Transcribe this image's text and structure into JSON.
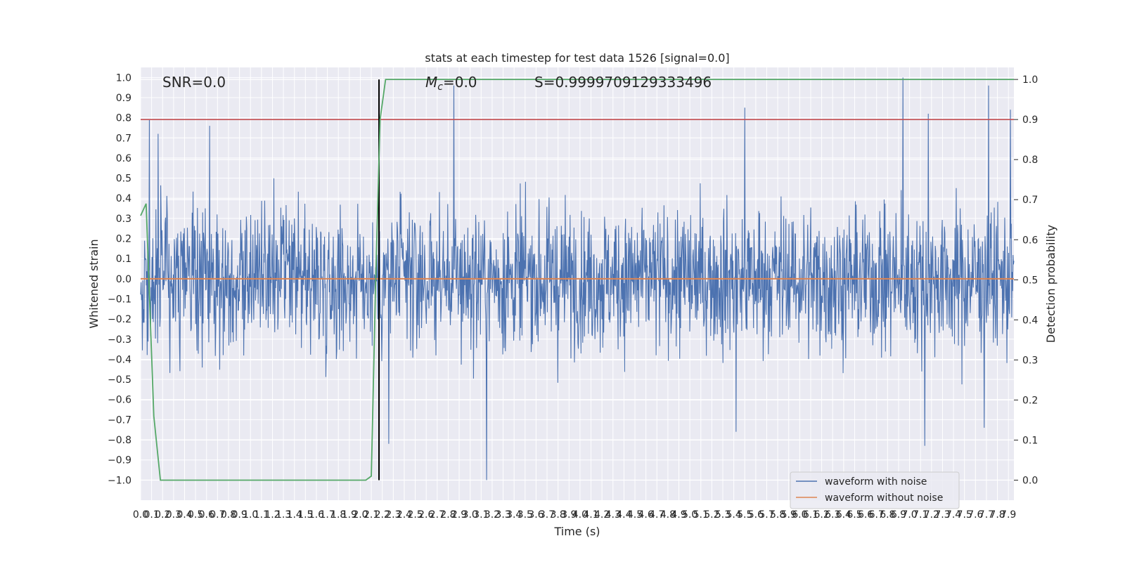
{
  "chart_data": {
    "type": "line",
    "title": "stats at each timestep for test data 1526 [signal=0.0]",
    "xlabel": "Time (s)",
    "ylabel_left": "Whitened strain",
    "ylabel_right": "Detection probability",
    "xlim": [
      0.0,
      7.95
    ],
    "ylim_left": [
      -1.1,
      1.05
    ],
    "ylim_right": [
      -0.05,
      1.03
    ],
    "x_ticks": [
      0.0,
      0.1,
      0.2,
      0.3,
      0.4,
      0.5,
      0.6,
      0.7,
      0.8,
      0.9,
      1.0,
      1.1,
      1.2,
      1.3,
      1.4,
      1.5,
      1.6,
      1.7,
      1.8,
      1.9,
      2.0,
      2.1,
      2.2,
      2.3,
      2.4,
      2.5,
      2.6,
      2.7,
      2.8,
      2.9,
      3.0,
      3.1,
      3.2,
      3.3,
      3.4,
      3.5,
      3.6,
      3.7,
      3.8,
      3.9,
      4.0,
      4.1,
      4.2,
      4.3,
      4.4,
      4.5,
      4.6,
      4.7,
      4.8,
      4.9,
      5.0,
      5.1,
      5.2,
      5.3,
      5.4,
      5.5,
      5.6,
      5.7,
      5.8,
      5.9,
      6.0,
      6.1,
      6.2,
      6.3,
      6.4,
      6.5,
      6.6,
      6.7,
      6.8,
      6.9,
      7.0,
      7.1,
      7.2,
      7.3,
      7.4,
      7.5,
      7.6,
      7.7,
      7.8,
      7.9
    ],
    "y_ticks_left": [
      1.0,
      0.9,
      0.8,
      0.7,
      0.6,
      0.5,
      0.4,
      0.3,
      0.2,
      0.1,
      0.0,
      -0.1,
      -0.2,
      -0.3,
      -0.4,
      -0.5,
      -0.6,
      -0.7,
      -0.8,
      -0.9,
      -1.0
    ],
    "y_ticks_right": [
      1.0,
      0.9,
      0.8,
      0.7,
      0.6,
      0.5,
      0.4,
      0.3,
      0.2,
      0.1,
      0.0
    ],
    "annotations": {
      "snr": "SNR=0.0",
      "mc_symbol": "M",
      "mc_sub": "c",
      "mc_value": "=0.0",
      "s": "S=0.9999709129333496"
    },
    "threshold": {
      "value": 0.9,
      "axis": "right",
      "color": "#c44e52"
    },
    "event_marker": {
      "x": 2.17,
      "color": "#000000"
    },
    "series": [
      {
        "name": "waveform with noise",
        "axis": "left",
        "color": "#4c72b0",
        "style": "noise",
        "n_points": 2000,
        "envelope_typical": 0.45,
        "peaks": [
          {
            "x": 0.08,
            "y": 0.79
          },
          {
            "x": 0.16,
            "y": 0.72
          },
          {
            "x": 0.63,
            "y": 0.76
          },
          {
            "x": 2.85,
            "y": 0.96
          },
          {
            "x": 5.5,
            "y": 0.85
          },
          {
            "x": 6.94,
            "y": 1.0
          },
          {
            "x": 7.17,
            "y": 0.82
          },
          {
            "x": 7.72,
            "y": 0.96
          },
          {
            "x": 7.92,
            "y": 0.84
          },
          {
            "x": 3.15,
            "y": -1.0
          },
          {
            "x": 2.26,
            "y": -0.82
          },
          {
            "x": 7.14,
            "y": -0.83
          },
          {
            "x": 5.42,
            "y": -0.76
          },
          {
            "x": 7.68,
            "y": -0.74
          }
        ]
      },
      {
        "name": "waveform without noise",
        "axis": "left",
        "color": "#dd8452",
        "style": "line",
        "x": [
          0.0,
          7.95
        ],
        "y": [
          0.0,
          0.0
        ]
      },
      {
        "name": "",
        "axis": "right",
        "color": "#55a868",
        "style": "line",
        "x": [
          0.0,
          0.05,
          0.12,
          0.18,
          0.25,
          0.5,
          1.0,
          1.5,
          1.8,
          2.05,
          2.1,
          2.14,
          2.18,
          2.23,
          2.3,
          3.0,
          4.0,
          5.0,
          6.0,
          7.0,
          7.95
        ],
        "y": [
          0.66,
          0.69,
          0.16,
          0.0,
          0.0,
          0.0,
          0.0,
          0.0,
          0.0,
          0.0,
          0.01,
          0.5,
          0.9,
          1.0,
          1.0,
          1.0,
          1.0,
          1.0,
          1.0,
          1.0,
          1.0
        ]
      }
    ],
    "legend": {
      "placement": "lower-right",
      "entries": [
        "waveform with noise",
        "waveform without noise"
      ]
    },
    "grid": true
  }
}
